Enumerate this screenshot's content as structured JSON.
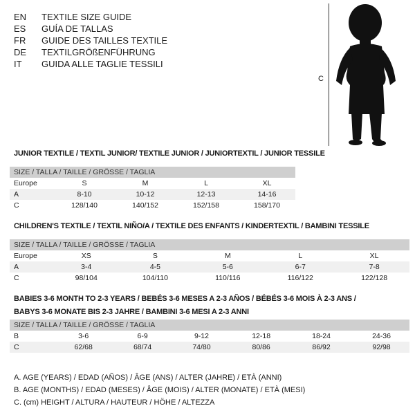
{
  "languages": [
    {
      "code": "EN",
      "title": "TEXTILE SIZE GUIDE"
    },
    {
      "code": "ES",
      "title": "GUÍA DE TALLAS"
    },
    {
      "code": "FR",
      "title": "GUIDE DES TAILLES TEXTILE"
    },
    {
      "code": "DE",
      "title": "TEXTILGRÖßENFÜHRUNG"
    },
    {
      "code": "IT",
      "title": "GUIDA ALLE TAGLIE TESSILI"
    }
  ],
  "figure": {
    "label": "C",
    "icon": "child-silhouette-icon"
  },
  "size_header": "SIZE / TALLA / TAILLE / GRÖSSE / TAGLIA",
  "junior": {
    "title": "JUNIOR TEXTILE / TEXTIL JUNIOR/ TEXTILE JUNIOR / JUNIORTEXTIL / JUNIOR TESSILE",
    "rows": [
      {
        "label": "Europe",
        "values": [
          "S",
          "M",
          "L",
          "XL"
        ]
      },
      {
        "label": "A",
        "values": [
          "8-10",
          "10-12",
          "12-13",
          "14-16"
        ]
      },
      {
        "label": "C",
        "values": [
          "128/140",
          "140/152",
          "152/158",
          "158/170"
        ]
      }
    ]
  },
  "children": {
    "title": "CHILDREN'S TEXTILE / TEXTIL NIÑO/A / TEXTILE DES ENFANTS / KINDERTEXTIL / BAMBINI TESSILE",
    "rows": [
      {
        "label": "Europe",
        "values": [
          "XS",
          "S",
          "M",
          "L",
          "XL"
        ]
      },
      {
        "label": "A",
        "values": [
          "3-4",
          "4-5",
          "5-6",
          "6-7",
          "7-8"
        ]
      },
      {
        "label": "C",
        "values": [
          "98/104",
          "104/110",
          "110/116",
          "116/122",
          "122/128"
        ]
      }
    ]
  },
  "babies": {
    "title_line1": "BABIES 3-6 MONTH TO 2-3 YEARS / BEBÉS 3-6 MESES A 2-3 AÑOS / BÉBÉS 3-6 MOIS À 2-3 ANS /",
    "title_line2": "BABYS 3-6 MONATE BIS 2-3 JAHRE / BAMBINI 3-6 MESI A 2-3 ANNI",
    "rows": [
      {
        "label": "B",
        "values": [
          "3-6",
          "6-9",
          "9-12",
          "12-18",
          "18-24",
          "24-36"
        ]
      },
      {
        "label": "C",
        "values": [
          "62/68",
          "68/74",
          "74/80",
          "80/86",
          "86/92",
          "92/98"
        ]
      }
    ]
  },
  "legend": [
    "A. AGE (YEARS) / EDAD (AÑOS) / ÂGE (ANS) / ALTER (JAHRE) / ETÀ (ANNI)",
    "B. AGE (MONTHS) / EDAD (MESES) / ÂGE (MOIS) / ALTER (MONATE) / ETÀ (MESI)",
    "C. (cm) HEIGHT / ALTURA / HAUTEUR / HÖHE / ALTEZZA"
  ]
}
